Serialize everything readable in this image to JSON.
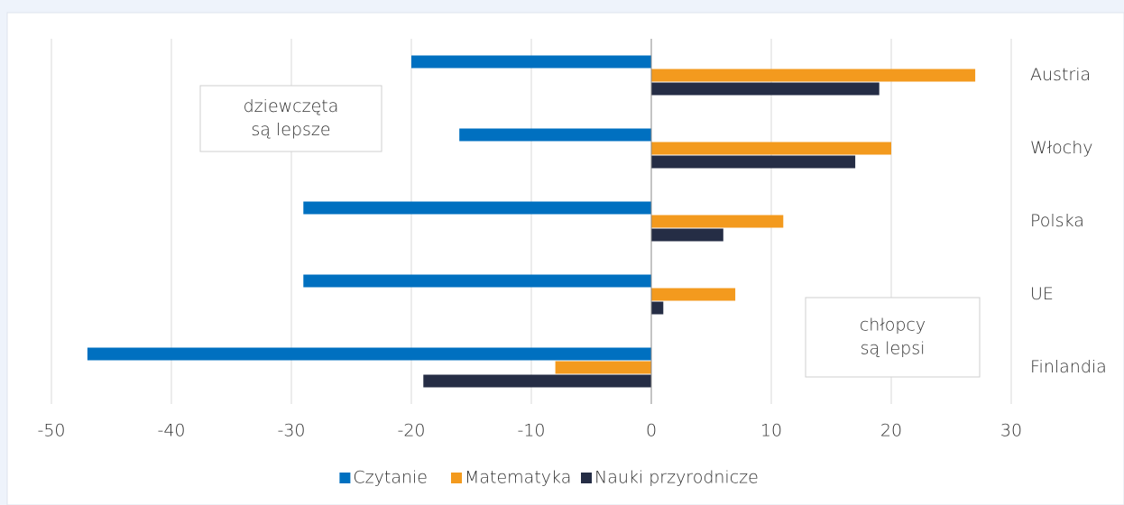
{
  "chart_data": {
    "type": "hbar",
    "categories": [
      "Austria",
      "Włochy",
      "Polska",
      "UE",
      "Finlandia"
    ],
    "series": [
      {
        "name": "Czytanie",
        "color": "#0070c0",
        "values": [
          -20,
          -16,
          -29,
          -29,
          -47
        ]
      },
      {
        "name": "Matematyka",
        "color": "#f39a1e",
        "values": [
          27,
          20,
          11,
          7,
          -8
        ]
      },
      {
        "name": "Nauki przyrodnicze",
        "color": "#252d45",
        "values": [
          19,
          17,
          6,
          1,
          -19
        ]
      }
    ],
    "xlim": [
      -50,
      30
    ],
    "xticks": [
      -50,
      -40,
      -30,
      -20,
      -10,
      0,
      10,
      20,
      30
    ],
    "grid": true,
    "annotations": [
      [
        "dziewczęta",
        "są lepsze"
      ],
      [
        "chłopcy",
        "są lepsi"
      ]
    ],
    "legend": "bottom"
  }
}
